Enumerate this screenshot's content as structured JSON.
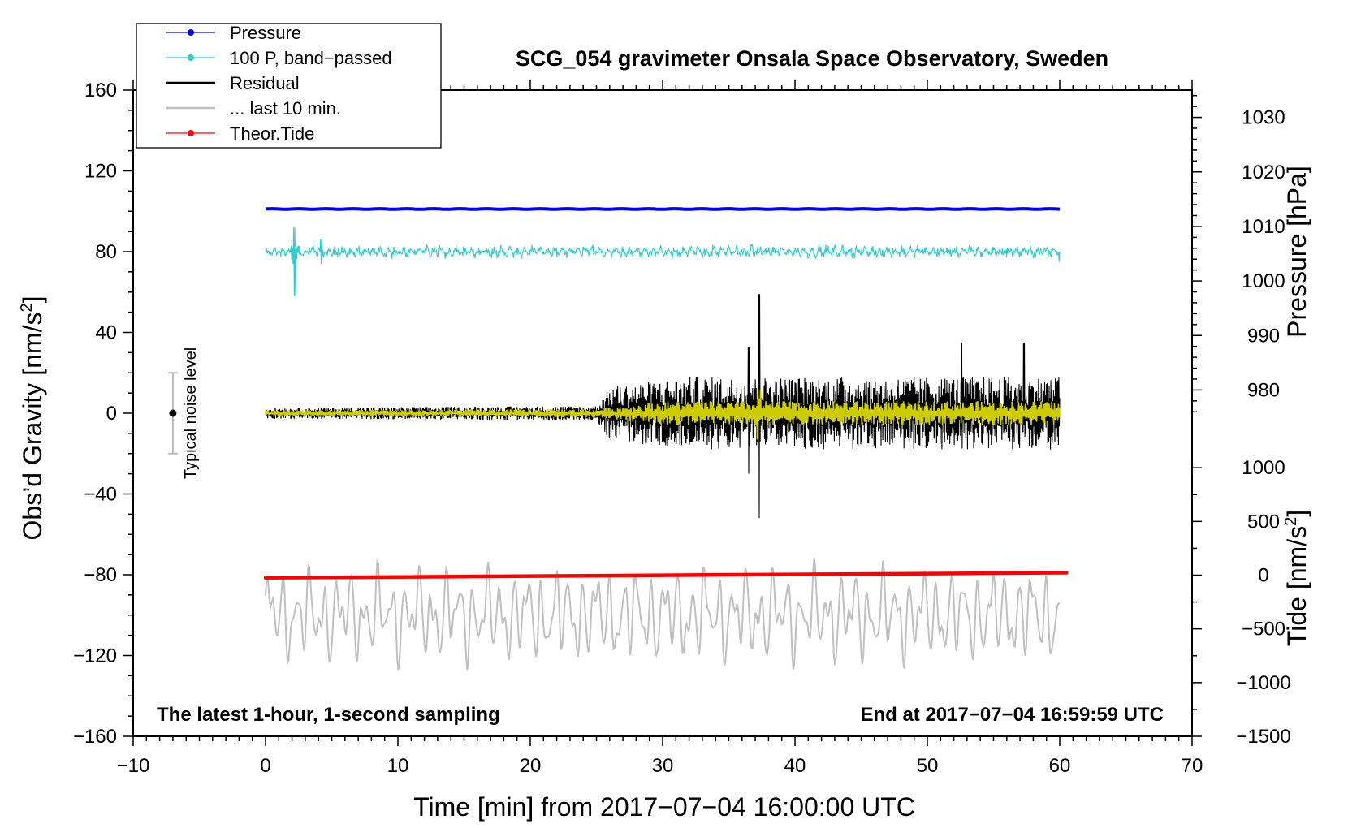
{
  "chart_data": {
    "type": "line",
    "title": "SCG_054 gravimeter Onsala Space Observatory, Sweden",
    "note_left": "The latest 1-hour, 1-second sampling",
    "note_right": "End at 2017−07−04 16:59:59 UTC",
    "xlabel": "Time [min] from 2017−07−04 16:00:00 UTC",
    "ylabel_main": "Obs’d Gravity [nm/s²]",
    "ylabel_main_parts": [
      "Obs’d Gravity [nm/s",
      "2",
      "]"
    ],
    "ylabel_pressure": "Pressure [hPa]",
    "ylabel_tide": "Tide [nm/s²]",
    "ylabel_tide_parts": [
      "Tide [nm/s",
      "2",
      "]"
    ],
    "xlim": [
      -10,
      70
    ],
    "ylim": [
      -160,
      160
    ],
    "pressure_axis_range": [
      975,
      1035
    ],
    "tide_axis_range": [
      -1500,
      1500
    ],
    "x_ticks": [
      -10,
      0,
      10,
      20,
      30,
      40,
      50,
      60,
      70
    ],
    "x_tick_labels": [
      "−10",
      "0",
      "10",
      "20",
      "30",
      "40",
      "50",
      "60",
      "70"
    ],
    "y_ticks": [
      -160,
      -120,
      -80,
      -40,
      0,
      40,
      80,
      120,
      160
    ],
    "y_tick_labels": [
      "−160",
      "−120",
      "−80",
      "−40",
      "0",
      "40",
      "80",
      "120",
      "160"
    ],
    "pressure_ticks": [
      980,
      990,
      1000,
      1010,
      1020,
      1030
    ],
    "pressure_tick_labels": [
      "980",
      "990",
      "1000",
      "1010",
      "1020",
      "1030"
    ],
    "tide_ticks": [
      -1500,
      -1000,
      -500,
      0,
      500,
      1000
    ],
    "tide_tick_labels": [
      "−1500",
      "−1000",
      "−500",
      "0",
      "500",
      "1000"
    ],
    "noise_level": {
      "label": "Typical noise level",
      "x": -7,
      "center": 0,
      "half_range": 20
    },
    "series": [
      {
        "name": "Pressure",
        "legend": "Pressure",
        "color": "#0000ff",
        "marker": true,
        "time_range": [
          0,
          60
        ],
        "level_hPa": 1013.2
      },
      {
        "name": "100 P, band-passed",
        "legend": "100 P, band−passed",
        "color": "#33cccc",
        "marker": true,
        "time_range": [
          0,
          60
        ],
        "offset_nm_s2": 80,
        "typical_amplitude": 3,
        "spikes": [
          {
            "t": 2.2,
            "max": 92,
            "min": 58
          },
          {
            "t": 4.2,
            "max": 86,
            "min": 74
          },
          {
            "t": 60,
            "max": 80,
            "min": 75
          }
        ]
      },
      {
        "name": "Residual",
        "legend": "Residual",
        "color": "#000000",
        "marker": false,
        "time_range": [
          0,
          60
        ],
        "amplitude_envelope": [
          [
            0,
            3
          ],
          [
            25,
            4
          ],
          [
            26,
            15
          ],
          [
            32,
            20
          ],
          [
            60,
            20
          ]
        ],
        "extremes": [
          {
            "t": 37.3,
            "max": 59,
            "min": -52
          },
          {
            "t": 57.3,
            "max": 35
          },
          {
            "t": 52.6,
            "max": 35
          },
          {
            "t": 36.5,
            "max": 33,
            "min": -30
          }
        ]
      },
      {
        "name": "... last 10 min.",
        "legend": "... last 10 min.",
        "color": "#c0c0c0",
        "marker": false,
        "time_range": [
          0,
          60
        ],
        "center_nm_s2": -100,
        "range_nm_s2": [
          -127,
          -63
        ]
      },
      {
        "name": "Theor.Tide",
        "legend": "Theor.Tide",
        "color": "#ff0000",
        "marker": true,
        "time_range": [
          0,
          60.5
        ],
        "start_nm_s2": -81.5,
        "end_nm_s2": -79
      },
      {
        "name": "Residual (smoothed)",
        "color": "#cccc00",
        "time_range": [
          0,
          60
        ],
        "amplitude_envelope": [
          [
            0,
            1.5
          ],
          [
            25,
            2
          ],
          [
            30,
            6
          ],
          [
            60,
            6
          ]
        ]
      }
    ]
  }
}
